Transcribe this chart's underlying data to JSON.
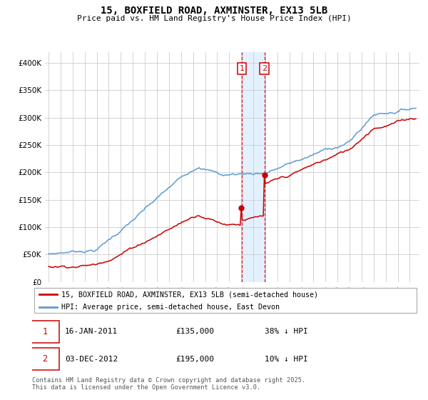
{
  "title": "15, BOXFIELD ROAD, AXMINSTER, EX13 5LB",
  "subtitle": "Price paid vs. HM Land Registry's House Price Index (HPI)",
  "legend_line1": "15, BOXFIELD ROAD, AXMINSTER, EX13 5LB (semi-detached house)",
  "legend_line2": "HPI: Average price, semi-detached house, East Devon",
  "sale1_date": "16-JAN-2011",
  "sale1_price": 135000,
  "sale1_label": "38% ↓ HPI",
  "sale2_date": "03-DEC-2012",
  "sale2_price": 195000,
  "sale2_label": "10% ↓ HPI",
  "footnote": "Contains HM Land Registry data © Crown copyright and database right 2025.\nThis data is licensed under the Open Government Licence v3.0.",
  "hpi_color": "#5b9bd5",
  "price_color": "#cc0000",
  "background_color": "#ffffff",
  "grid_color": "#cccccc",
  "shade_color": "#ddeeff",
  "ylim": [
    0,
    420000
  ],
  "yticks": [
    0,
    50000,
    100000,
    150000,
    200000,
    250000,
    300000,
    350000,
    400000
  ],
  "sale1_year": 2011.04,
  "sale2_year": 2012.92
}
